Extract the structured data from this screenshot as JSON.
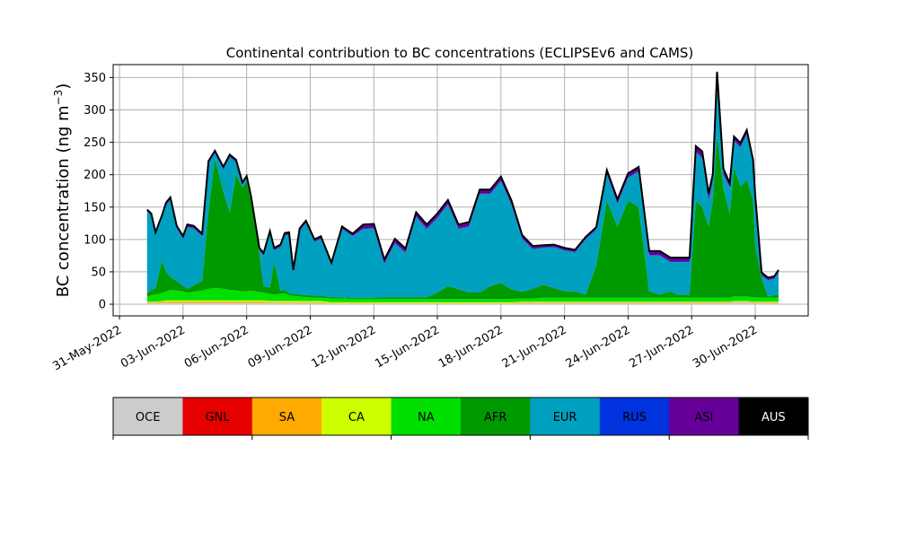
{
  "chart_data": {
    "type": "area",
    "stacked": true,
    "title": "Continental contribution to BC concentrations (ECLIPSEv6 and CAMS)",
    "ylabel": "BC concentration (ng m",
    "ylabel_sup": "−3",
    "ylabel_tail": ")",
    "xlabel": "",
    "grid": true,
    "ylim": [
      -18,
      370
    ],
    "yticks": [
      0,
      50,
      100,
      150,
      200,
      250,
      300,
      350
    ],
    "xlim_days": [
      -0.3,
      32.5
    ],
    "xticks": [
      {
        "day": 0,
        "label": "31-May-2022"
      },
      {
        "day": 3,
        "label": "03-Jun-2022"
      },
      {
        "day": 6,
        "label": "06-Jun-2022"
      },
      {
        "day": 9,
        "label": "09-Jun-2022"
      },
      {
        "day": 12,
        "label": "12-Jun-2022"
      },
      {
        "day": 15,
        "label": "15-Jun-2022"
      },
      {
        "day": 18,
        "label": "18-Jun-2022"
      },
      {
        "day": 21,
        "label": "21-Jun-2022"
      },
      {
        "day": 24,
        "label": "24-Jun-2022"
      },
      {
        "day": 27,
        "label": "27-Jun-2022"
      },
      {
        "day": 30,
        "label": "30-Jun-2022"
      }
    ],
    "total_outline_color": "#000000",
    "x": [
      1.3,
      1.5,
      1.7,
      2.0,
      2.2,
      2.4,
      2.7,
      3.0,
      3.2,
      3.5,
      3.9,
      4.2,
      4.5,
      4.9,
      5.2,
      5.5,
      5.8,
      6.0,
      6.2,
      6.6,
      6.8,
      7.1,
      7.3,
      7.6,
      7.8,
      8.0,
      8.2,
      8.5,
      8.8,
      9.2,
      9.5,
      10.0,
      10.5,
      11.0,
      11.5,
      12.0,
      12.5,
      13.0,
      13.5,
      14.0,
      14.5,
      15.0,
      15.5,
      16.0,
      16.5,
      17.0,
      17.5,
      18.0,
      18.5,
      19.0,
      19.5,
      20.0,
      20.5,
      21.0,
      21.5,
      22.0,
      22.5,
      23.0,
      23.5,
      24.0,
      24.5,
      25.0,
      25.5,
      26.0,
      26.3,
      26.6,
      26.9,
      27.2,
      27.5,
      27.8,
      28.0,
      28.2,
      28.5,
      28.8,
      29.0,
      29.3,
      29.6,
      29.9,
      30.0,
      30.3,
      30.6,
      30.9,
      31.1
    ],
    "series": [
      {
        "name": "OCE",
        "color": "#cccccc",
        "values": [
          2,
          2,
          2,
          2,
          2,
          2,
          2,
          2,
          2,
          2,
          2,
          2,
          2,
          2,
          2,
          2,
          2,
          2,
          2,
          2,
          2,
          2,
          2,
          2,
          2,
          2,
          2,
          2,
          2,
          2,
          2,
          1,
          1,
          1,
          1,
          1,
          1,
          1,
          1,
          1,
          1,
          1,
          1,
          1,
          1,
          1,
          1,
          1,
          1,
          2,
          2,
          2,
          2,
          2,
          2,
          2,
          2,
          2,
          2,
          2,
          2,
          2,
          2,
          2,
          2,
          2,
          2,
          2,
          2,
          2,
          2,
          2,
          2,
          2,
          3,
          3,
          3,
          2,
          2,
          2,
          2,
          2,
          2
        ]
      },
      {
        "name": "GNL",
        "color": "#e60000",
        "values": [
          0,
          0,
          0,
          0,
          0,
          0,
          0,
          0,
          0,
          0,
          0,
          0,
          0,
          0,
          0,
          0,
          0,
          0,
          0,
          0,
          0,
          0,
          0,
          0,
          0,
          0,
          0,
          0,
          0,
          0,
          0,
          0,
          0,
          0,
          0,
          0,
          0,
          0,
          0,
          0,
          0,
          0,
          0,
          0,
          0,
          0,
          0,
          0,
          0,
          0,
          0,
          0,
          0,
          0,
          0,
          0,
          0,
          0,
          0,
          0,
          0,
          0,
          0,
          0,
          0,
          0,
          0,
          0,
          0,
          0,
          0,
          0,
          0,
          0,
          0,
          0,
          0,
          0,
          0,
          0,
          0,
          0,
          0
        ]
      },
      {
        "name": "SA",
        "color": "#ffaa00",
        "values": [
          1,
          1,
          1,
          2,
          2,
          2,
          2,
          2,
          2,
          2,
          2,
          2,
          2,
          2,
          2,
          2,
          2,
          2,
          2,
          2,
          2,
          1,
          1,
          1,
          1,
          1,
          1,
          1,
          1,
          1,
          1,
          1,
          1,
          1,
          1,
          1,
          1,
          1,
          1,
          1,
          1,
          1,
          1,
          1,
          1,
          1,
          1,
          1,
          1,
          1,
          1,
          1,
          1,
          1,
          1,
          1,
          1,
          1,
          1,
          1,
          1,
          1,
          1,
          1,
          1,
          1,
          1,
          1,
          1,
          1,
          1,
          1,
          1,
          1,
          1,
          1,
          1,
          1,
          1,
          1,
          1,
          1,
          1
        ]
      },
      {
        "name": "CA",
        "color": "#ccff00",
        "values": [
          1,
          1,
          1,
          1,
          2,
          2,
          2,
          2,
          2,
          2,
          2,
          2,
          2,
          2,
          2,
          2,
          2,
          2,
          2,
          2,
          2,
          2,
          2,
          2,
          2,
          2,
          2,
          2,
          2,
          2,
          2,
          1,
          1,
          1,
          1,
          1,
          1,
          1,
          1,
          1,
          1,
          1,
          1,
          1,
          1,
          1,
          1,
          1,
          1,
          1,
          1,
          1,
          1,
          1,
          1,
          1,
          1,
          1,
          1,
          1,
          1,
          1,
          1,
          1,
          1,
          1,
          1,
          1,
          1,
          1,
          1,
          1,
          1,
          1,
          1,
          1,
          1,
          1,
          1,
          1,
          1,
          1,
          1
        ]
      },
      {
        "name": "NA",
        "color": "#00e000",
        "values": [
          8,
          10,
          11,
          12,
          14,
          16,
          15,
          14,
          12,
          13,
          15,
          18,
          19,
          18,
          16,
          15,
          14,
          14,
          15,
          13,
          12,
          11,
          10,
          11,
          12,
          9,
          8,
          7,
          6,
          5,
          5,
          6,
          6,
          5,
          5,
          5,
          5,
          5,
          5,
          5,
          5,
          5,
          5,
          5,
          5,
          5,
          5,
          5,
          5,
          5,
          5,
          6,
          6,
          6,
          6,
          6,
          6,
          6,
          6,
          6,
          6,
          6,
          6,
          6,
          6,
          6,
          6,
          6,
          6,
          6,
          6,
          6,
          6,
          6,
          7,
          7,
          7,
          7,
          7,
          6,
          6,
          6,
          6
        ]
      },
      {
        "name": "AFR",
        "color": "#009900",
        "values": [
          5,
          8,
          10,
          50,
          30,
          20,
          15,
          8,
          6,
          10,
          15,
          120,
          200,
          150,
          120,
          180,
          160,
          170,
          140,
          60,
          10,
          10,
          50,
          5,
          5,
          3,
          3,
          3,
          3,
          3,
          3,
          2,
          2,
          2,
          2,
          2,
          3,
          3,
          3,
          3,
          3,
          10,
          20,
          15,
          10,
          10,
          20,
          25,
          15,
          10,
          15,
          20,
          15,
          10,
          10,
          5,
          50,
          150,
          110,
          150,
          140,
          10,
          5,
          10,
          5,
          5,
          5,
          150,
          140,
          110,
          150,
          250,
          170,
          130,
          200,
          170,
          180,
          150,
          80,
          30,
          2,
          4,
          4
        ]
      },
      {
        "name": "EUR",
        "color": "#00a0c0",
        "values": [
          126,
          114,
          82,
          66,
          103,
          119,
          81,
          73,
          95,
          88,
          69,
          73,
          8,
          34,
          85,
          18,
          4,
          4,
          3,
          4,
          47,
          83,
          18,
          67,
          84,
          90,
          33,
          98,
          111,
          83,
          88,
          49,
          105,
          95,
          106,
          107,
          51,
          83,
          68,
          124,
          105,
          115,
          126,
          93,
          102,
          152,
          142,
          157,
          130,
          82,
          61,
          57,
          63,
          63,
          60,
          85,
          55,
          40,
          35,
          35,
          55,
          55,
          60,
          45,
          50,
          50,
          50,
          75,
          75,
          40,
          30,
          90,
          20,
          40,
          40,
          60,
          70,
          55,
          70,
          4,
          25,
          25,
          35
        ]
      },
      {
        "name": "RUS",
        "color": "#0033dd",
        "values": [
          1,
          1,
          1,
          1,
          1,
          1,
          1,
          1,
          1,
          1,
          1,
          1,
          1,
          1,
          1,
          1,
          1,
          1,
          1,
          1,
          1,
          1,
          1,
          1,
          1,
          1,
          1,
          1,
          1,
          1,
          1,
          1,
          1,
          1,
          1,
          1,
          1,
          1,
          1,
          1,
          1,
          1,
          1,
          1,
          1,
          1,
          1,
          1,
          1,
          1,
          1,
          1,
          1,
          1,
          1,
          1,
          1,
          1,
          1,
          1,
          1,
          1,
          1,
          1,
          1,
          1,
          1,
          1,
          1,
          1,
          1,
          1,
          1,
          1,
          1,
          1,
          1,
          1,
          1,
          1,
          1,
          1,
          1
        ]
      },
      {
        "name": "ASI",
        "color": "#660099",
        "values": [
          2,
          3,
          3,
          3,
          3,
          3,
          3,
          3,
          3,
          3,
          3,
          3,
          3,
          3,
          3,
          3,
          3,
          3,
          3,
          3,
          3,
          3,
          3,
          3,
          3,
          3,
          3,
          3,
          3,
          3,
          3,
          3,
          3,
          3,
          6,
          6,
          6,
          6,
          6,
          6,
          6,
          6,
          6,
          6,
          6,
          6,
          6,
          6,
          6,
          5,
          4,
          3,
          3,
          3,
          3,
          3,
          3,
          6,
          6,
          6,
          6,
          6,
          6,
          6,
          6,
          6,
          6,
          8,
          10,
          10,
          10,
          8,
          8,
          6,
          6,
          6,
          6,
          6,
          6,
          4,
          3,
          3,
          3
        ]
      },
      {
        "name": "AUS",
        "color": "#000000",
        "values": [
          0,
          0,
          0,
          0,
          0,
          0,
          0,
          0,
          0,
          0,
          0,
          0,
          0,
          0,
          0,
          0,
          0,
          0,
          0,
          0,
          0,
          0,
          0,
          0,
          0,
          0,
          0,
          0,
          0,
          0,
          0,
          0,
          0,
          0,
          0,
          0,
          0,
          0,
          0,
          0,
          0,
          0,
          0,
          0,
          0,
          0,
          0,
          0,
          0,
          0,
          0,
          0,
          0,
          0,
          0,
          0,
          0,
          0,
          0,
          0,
          0,
          0,
          0,
          0,
          0,
          0,
          0,
          0,
          0,
          0,
          0,
          0,
          0,
          0,
          0,
          0,
          0,
          0,
          0,
          0,
          0,
          0,
          0
        ]
      }
    ]
  },
  "legend": {
    "items": [
      {
        "label": "OCE",
        "color": "#cccccc",
        "text_color": "#000000"
      },
      {
        "label": "GNL",
        "color": "#e60000",
        "text_color": "#000000"
      },
      {
        "label": "SA",
        "color": "#ffaa00",
        "text_color": "#000000"
      },
      {
        "label": "CA",
        "color": "#ccff00",
        "text_color": "#000000"
      },
      {
        "label": "NA",
        "color": "#00e000",
        "text_color": "#000000"
      },
      {
        "label": "AFR",
        "color": "#009900",
        "text_color": "#000000"
      },
      {
        "label": "EUR",
        "color": "#00a0c0",
        "text_color": "#000000"
      },
      {
        "label": "RUS",
        "color": "#0033dd",
        "text_color": "#000000"
      },
      {
        "label": "ASI",
        "color": "#660099",
        "text_color": "#000000"
      },
      {
        "label": "AUS",
        "color": "#000000",
        "text_color": "#ffffff"
      }
    ]
  }
}
